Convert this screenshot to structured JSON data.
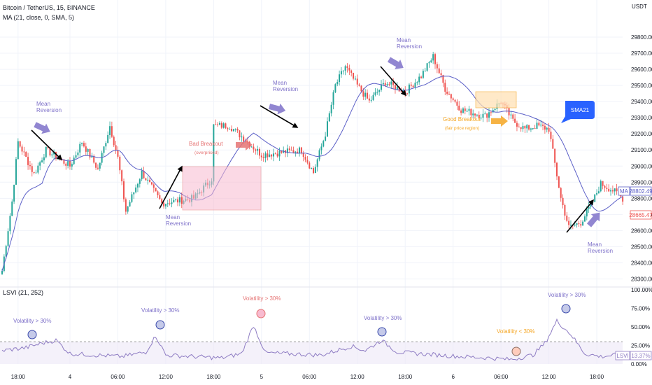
{
  "header": {
    "symbol": "Bitcoin / TetherUS, 15, BINANCE",
    "ma_label": "MA (21, close, 0, SMA, 5)",
    "currency": "USDT"
  },
  "lower_pane": {
    "indicator_label": "LSVI (21, 252)"
  },
  "badges": {
    "ma_tag": "MA",
    "ma_value": "28802.49",
    "price_value": "28665.47",
    "lsvi_tag": "LSVI",
    "lsvi_value": "13.37%"
  },
  "colors": {
    "up": "#26a69a",
    "down": "#ef5350",
    "ma": "#5b5fc7",
    "lsvi": "#8e7cc3",
    "annotation_purple": "#7e71c9",
    "annotation_red": "#e57373",
    "annotation_orange": "#f5a623",
    "sma_callout": "#2962ff"
  },
  "chart_data": [
    {
      "type": "candlestick",
      "ylim": [
        28250,
        29900
      ],
      "y_ticks": [
        "29800.00",
        "29700.00",
        "29600.00",
        "29500.00",
        "29400.00",
        "29300.00",
        "29200.00",
        "29100.00",
        "29000.00",
        "28900.00",
        "28800.00",
        "28700.00",
        "28600.00",
        "28500.00",
        "28400.00",
        "28300.00"
      ],
      "x_ticks": [
        "18:00",
        "4",
        "06:00",
        "12:00",
        "18:00",
        "5",
        "06:00",
        "12:00",
        "18:00",
        "6",
        "06:00",
        "12:00",
        "18:00"
      ],
      "price_anchors": [
        {
          "t": 0,
          "p": 28350
        },
        {
          "t": 5,
          "p": 28780
        },
        {
          "t": 8,
          "p": 29150
        },
        {
          "t": 16,
          "p": 28950
        },
        {
          "t": 22,
          "p": 29100
        },
        {
          "t": 34,
          "p": 29000
        },
        {
          "t": 40,
          "p": 29150
        },
        {
          "t": 48,
          "p": 28980
        },
        {
          "t": 54,
          "p": 29250
        },
        {
          "t": 58,
          "p": 29050
        },
        {
          "t": 62,
          "p": 28720
        },
        {
          "t": 70,
          "p": 28960
        },
        {
          "t": 80,
          "p": 28770
        },
        {
          "t": 96,
          "p": 28800
        },
        {
          "t": 105,
          "p": 28920
        },
        {
          "t": 106,
          "p": 29250
        },
        {
          "t": 114,
          "p": 29250
        },
        {
          "t": 123,
          "p": 29150
        },
        {
          "t": 130,
          "p": 29070
        },
        {
          "t": 150,
          "p": 29100
        },
        {
          "t": 156,
          "p": 28960
        },
        {
          "t": 162,
          "p": 29200
        },
        {
          "t": 167,
          "p": 29500
        },
        {
          "t": 172,
          "p": 29620
        },
        {
          "t": 178,
          "p": 29500
        },
        {
          "t": 184,
          "p": 29400
        },
        {
          "t": 192,
          "p": 29520
        },
        {
          "t": 202,
          "p": 29460
        },
        {
          "t": 210,
          "p": 29560
        },
        {
          "t": 216,
          "p": 29680
        },
        {
          "t": 222,
          "p": 29480
        },
        {
          "t": 230,
          "p": 29350
        },
        {
          "t": 242,
          "p": 29310
        },
        {
          "t": 250,
          "p": 29400
        },
        {
          "t": 256,
          "p": 29280
        },
        {
          "t": 262,
          "p": 29230
        },
        {
          "t": 268,
          "p": 29250
        },
        {
          "t": 274,
          "p": 29230
        },
        {
          "t": 280,
          "p": 28800
        },
        {
          "t": 284,
          "p": 28620
        },
        {
          "t": 290,
          "p": 28650
        },
        {
          "t": 296,
          "p": 28780
        },
        {
          "t": 300,
          "p": 28890
        },
        {
          "t": 306,
          "p": 28850
        },
        {
          "t": 311,
          "p": 28800
        }
      ],
      "ma_series": {
        "name": "MA",
        "period": 21
      }
    },
    {
      "type": "line",
      "ylim": [
        0,
        100
      ],
      "y_ticks": [
        "100.00%",
        "75.00%",
        "50.00%",
        "25.00%",
        "0.00%"
      ],
      "threshold": 30,
      "lsvi_anchors": [
        {
          "t": 0,
          "v": 18
        },
        {
          "t": 12,
          "v": 22
        },
        {
          "t": 20,
          "v": 28
        },
        {
          "t": 27,
          "v": 32
        },
        {
          "t": 34,
          "v": 14
        },
        {
          "t": 60,
          "v": 10
        },
        {
          "t": 72,
          "v": 16
        },
        {
          "t": 77,
          "v": 38
        },
        {
          "t": 82,
          "v": 12
        },
        {
          "t": 110,
          "v": 8
        },
        {
          "t": 120,
          "v": 14
        },
        {
          "t": 126,
          "v": 52
        },
        {
          "t": 132,
          "v": 15
        },
        {
          "t": 160,
          "v": 12
        },
        {
          "t": 175,
          "v": 24
        },
        {
          "t": 182,
          "v": 18
        },
        {
          "t": 190,
          "v": 32
        },
        {
          "t": 198,
          "v": 16
        },
        {
          "t": 230,
          "v": 10
        },
        {
          "t": 245,
          "v": 8
        },
        {
          "t": 255,
          "v": 6
        },
        {
          "t": 266,
          "v": 12
        },
        {
          "t": 272,
          "v": 28
        },
        {
          "t": 278,
          "v": 58
        },
        {
          "t": 285,
          "v": 40
        },
        {
          "t": 292,
          "v": 14
        },
        {
          "t": 300,
          "v": 10
        },
        {
          "t": 311,
          "v": 13
        }
      ]
    }
  ],
  "annotations": {
    "mean_reversion": "Mean\nReversion",
    "bad_breakout": "Bad Breakout",
    "overpriced": "(overpriced)",
    "good_breakout": "Good Breakout",
    "fair_price": "(fair price region)",
    "sma21": "SMA21",
    "vol_gt": "Volatility > 30%",
    "vol_lt": "Volatility < 30%"
  }
}
